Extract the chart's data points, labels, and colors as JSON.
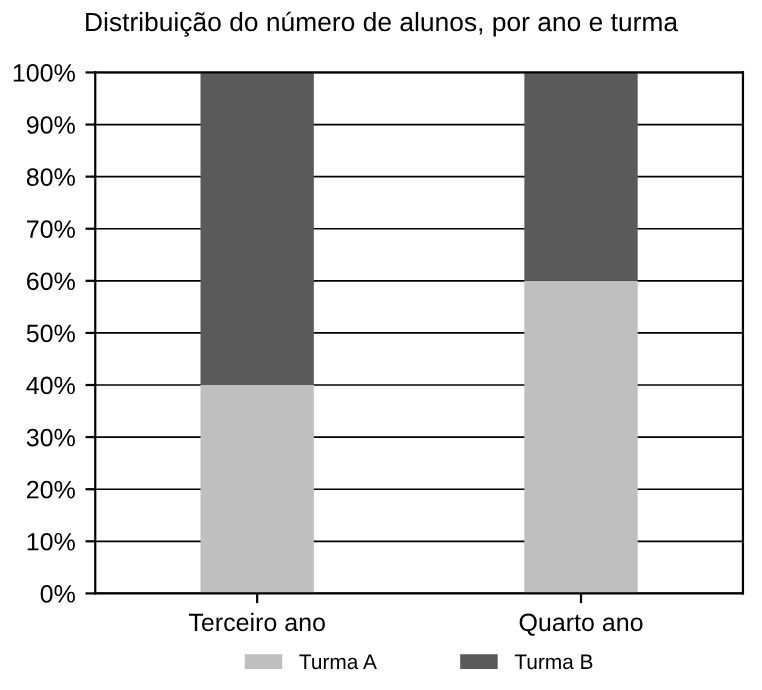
{
  "chart_data": {
    "type": "bar",
    "title": "Distribuição do número de alunos, por ano e turma",
    "categories": [
      "Terceiro ano",
      "Quarto ano"
    ],
    "stacked": true,
    "series": [
      {
        "name": "Turma A",
        "color": "#bfbfbf",
        "values": [
          40,
          60
        ]
      },
      {
        "name": "Turma B",
        "color": "#5a5a5a",
        "values": [
          60,
          40
        ]
      }
    ],
    "ylim": [
      0,
      100
    ],
    "yticks": [
      {
        "value": 0,
        "label": "0%"
      },
      {
        "value": 10,
        "label": "10%"
      },
      {
        "value": 20,
        "label": "20%"
      },
      {
        "value": 30,
        "label": "30%"
      },
      {
        "value": 40,
        "label": "40%"
      },
      {
        "value": 50,
        "label": "50%"
      },
      {
        "value": 60,
        "label": "60%"
      },
      {
        "value": 70,
        "label": "70%"
      },
      {
        "value": 80,
        "label": "80%"
      },
      {
        "value": 90,
        "label": "90%"
      },
      {
        "value": 100,
        "label": "100%"
      }
    ],
    "grid": "y",
    "legend": "bottom"
  }
}
